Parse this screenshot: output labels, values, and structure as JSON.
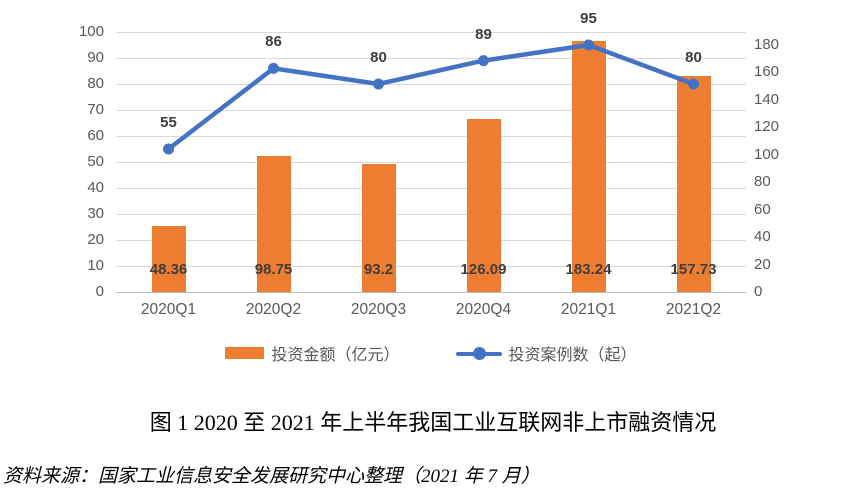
{
  "chart_data": {
    "type": "bar",
    "subtype": "bar+line combo, dual axis",
    "categories": [
      "2020Q1",
      "2020Q2",
      "2020Q3",
      "2020Q4",
      "2021Q1",
      "2021Q2"
    ],
    "series": [
      {
        "name": "投资金额（亿元）",
        "kind": "bar",
        "axis": "right",
        "color": "#ED7D31",
        "values": [
          48.36,
          98.75,
          93.2,
          126.09,
          183.24,
          157.73
        ],
        "labels": [
          "48.36",
          "98.75",
          "93.2",
          "126.09",
          "183.24",
          "157.73"
        ]
      },
      {
        "name": "投资案例数（起）",
        "kind": "line",
        "axis": "left",
        "color": "#4472C4",
        "values": [
          55,
          86,
          80,
          89,
          95,
          80
        ],
        "labels": [
          "55",
          "86",
          "80",
          "89",
          "95",
          "80"
        ]
      }
    ],
    "left_axis": {
      "min": 0,
      "max": 100,
      "step": 10
    },
    "right_axis": {
      "min": 0,
      "max": 180,
      "step": 20,
      "top_fraction": 0.95
    },
    "grid": true,
    "legend_position": "bottom"
  },
  "caption": "图 1  2020 至 2021 年上半年我国工业互联网非上市融资情况",
  "source": "资料来源：国家工业信息安全发展研究中心整理（2021 年 7 月）",
  "colors": {
    "bar": "#ED7D31",
    "line": "#4472C4",
    "grid": "#D9D9D9",
    "axis_text": "#595959",
    "data_label": "#3F3F3F"
  }
}
